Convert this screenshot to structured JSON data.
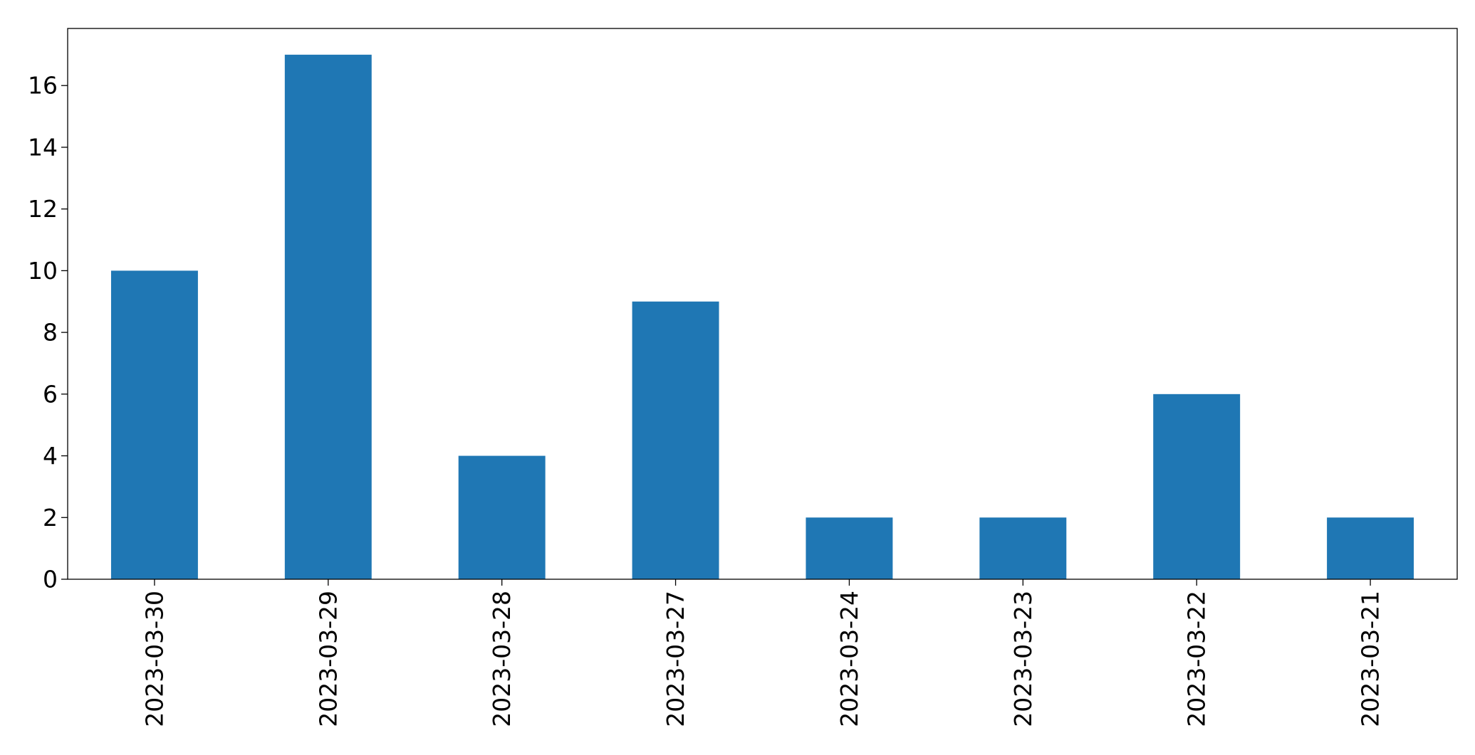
{
  "chart_data": {
    "type": "bar",
    "title": "",
    "xlabel": "",
    "ylabel": "",
    "categories": [
      "2023-03-30",
      "2023-03-29",
      "2023-03-28",
      "2023-03-27",
      "2023-03-24",
      "2023-03-23",
      "2023-03-22",
      "2023-03-21"
    ],
    "values": [
      10,
      17,
      4,
      9,
      2,
      2,
      6,
      2
    ],
    "ylim": [
      0,
      17.85
    ],
    "yticks": [
      0,
      2,
      4,
      6,
      8,
      10,
      12,
      14,
      16
    ],
    "xtick_rotation": "vertical",
    "legend": "none",
    "grid": false,
    "bar_color": "#1f77b4"
  }
}
